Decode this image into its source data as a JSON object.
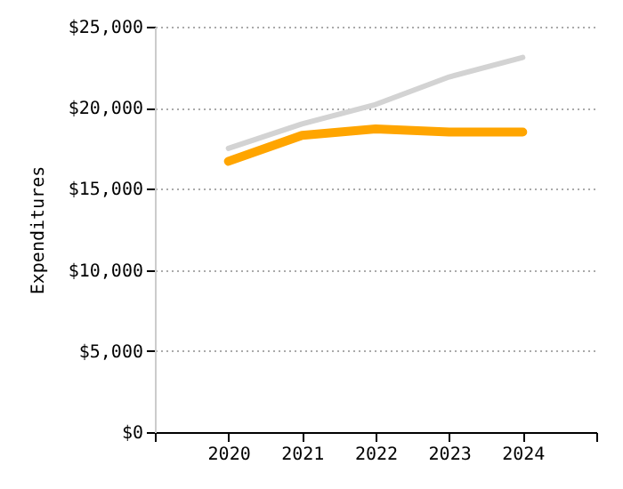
{
  "chart_data": {
    "type": "line",
    "ylabel": "Expenditures",
    "x": [
      2020,
      2021,
      2022,
      2023,
      2024
    ],
    "series": [
      {
        "color": "#d3d3d3",
        "values": [
          17500,
          19000,
          20200,
          21900,
          23100
        ]
      },
      {
        "color": "#ffa500",
        "values": [
          16700,
          18300,
          18700,
          18500,
          18500
        ]
      }
    ],
    "xlim": [
      2019,
      2025
    ],
    "xticks": [
      {
        "value": 2019,
        "label": null
      },
      2020,
      2021,
      2022,
      2023,
      2024,
      {
        "value": 2025,
        "label": null
      }
    ],
    "ylim": [
      0,
      25000
    ],
    "yticks": [
      {
        "value": 0,
        "label": "$0"
      },
      {
        "value": 5000,
        "label": "$5,000"
      },
      {
        "value": 10000,
        "label": "$10,000"
      },
      {
        "value": 15000,
        "label": "$15,000"
      },
      {
        "value": 20000,
        "label": "$20,000"
      },
      {
        "value": 25000,
        "label": "$25,000"
      }
    ],
    "grid": "y",
    "line_style": "solid"
  }
}
